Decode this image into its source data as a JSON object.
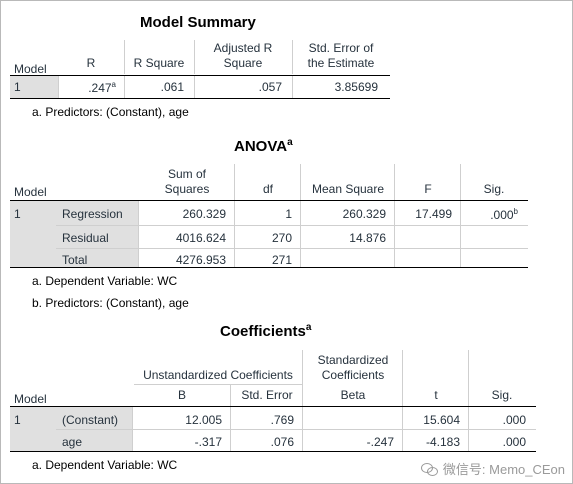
{
  "model_summary": {
    "title": "Model Summary",
    "headers": [
      "Model",
      "R",
      "R Square",
      "Adjusted R Square",
      "Std. Error of the Estimate"
    ],
    "header_lines": {
      "adj1": "Adjusted R",
      "adj2": "Square",
      "se1": "Std. Error of",
      "se2": "the Estimate"
    },
    "row": {
      "model": "1",
      "r": ".247",
      "r_sup": "a",
      "r_square": ".061",
      "adj_r_square": ".057",
      "std_error": "3.85699"
    },
    "notes": [
      "a. Predictors: (Constant), age"
    ]
  },
  "anova": {
    "title": "ANOVA",
    "title_sup": "a",
    "headers": {
      "model": "Model",
      "ss1": "Sum of",
      "ss2": "Squares",
      "df": "df",
      "ms": "Mean Square",
      "f": "F",
      "sig": "Sig."
    },
    "model_num": "1",
    "rows": [
      {
        "label": "Regression",
        "ss": "260.329",
        "df": "1",
        "ms": "260.329",
        "f": "17.499",
        "sig": ".000",
        "sig_sup": "b"
      },
      {
        "label": "Residual",
        "ss": "4016.624",
        "df": "270",
        "ms": "14.876",
        "f": "",
        "sig": ""
      },
      {
        "label": "Total",
        "ss": "4276.953",
        "df": "271",
        "ms": "",
        "f": "",
        "sig": ""
      }
    ],
    "notes": [
      "a. Dependent Variable: WC",
      "b. Predictors: (Constant), age"
    ]
  },
  "coefficients": {
    "title": "Coefficients",
    "title_sup": "a",
    "headers": {
      "model": "Model",
      "unstd": "Unstandardized Coefficients",
      "std1": "Standardized",
      "std2": "Coefficients",
      "b": "B",
      "se": "Std. Error",
      "beta": "Beta",
      "t": "t",
      "sig": "Sig."
    },
    "model_num": "1",
    "rows": [
      {
        "label": "(Constant)",
        "b": "12.005",
        "se": ".769",
        "beta": "",
        "t": "15.604",
        "sig": ".000"
      },
      {
        "label": "age",
        "b": "-.317",
        "se": ".076",
        "beta": "-.247",
        "t": "-4.183",
        "sig": ".000"
      }
    ],
    "notes": [
      "a. Dependent Variable: WC"
    ]
  },
  "watermark": "微信号: Memo_CEon"
}
